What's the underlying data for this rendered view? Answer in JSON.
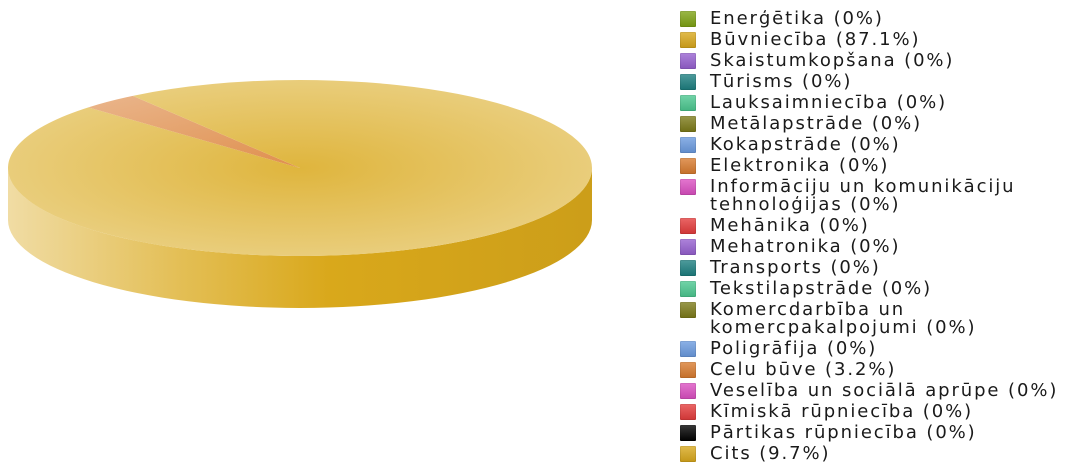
{
  "chart_data": {
    "type": "pie",
    "three_d": true,
    "legend": "right",
    "categories": [
      "Enerģētika",
      "Būvniecība",
      "Skaistumkopšana",
      "Tūrisms",
      "Lauksaimniecība",
      "Metālapstrāde",
      "Kokapstrāde",
      "Elektronika",
      "Informāciju un komunikāciju tehnoloģijas",
      "Mehānika",
      "Mehatronika",
      "Transports",
      "Tekstilapstrāde",
      "Komercdarbība un komercpakalpojumi",
      "Poligrāfija",
      "Celu būve",
      "Veselība un sociālā aprūpe",
      "Kīmiskā rūpniecība",
      "Pārtikas rūpniecība",
      "Cits"
    ],
    "values": [
      0,
      87.1,
      0,
      0,
      0,
      0,
      0,
      0,
      0,
      0,
      0,
      0,
      0,
      0,
      0,
      3.2,
      0,
      0,
      0,
      9.7
    ],
    "colors": [
      "#7ea313",
      "#d9a81b",
      "#9660d0",
      "#1c7f80",
      "#4bc890",
      "#7c7a18",
      "#6b9be0",
      "#d97b2e",
      "#dc4fc2",
      "#e53b3b",
      "#9660d0",
      "#1c7f80",
      "#4bc890",
      "#7c7a18",
      "#6b9be0",
      "#d97b2e",
      "#dc4fc2",
      "#e53b3b",
      "#000000",
      "#d9a81b"
    ]
  }
}
